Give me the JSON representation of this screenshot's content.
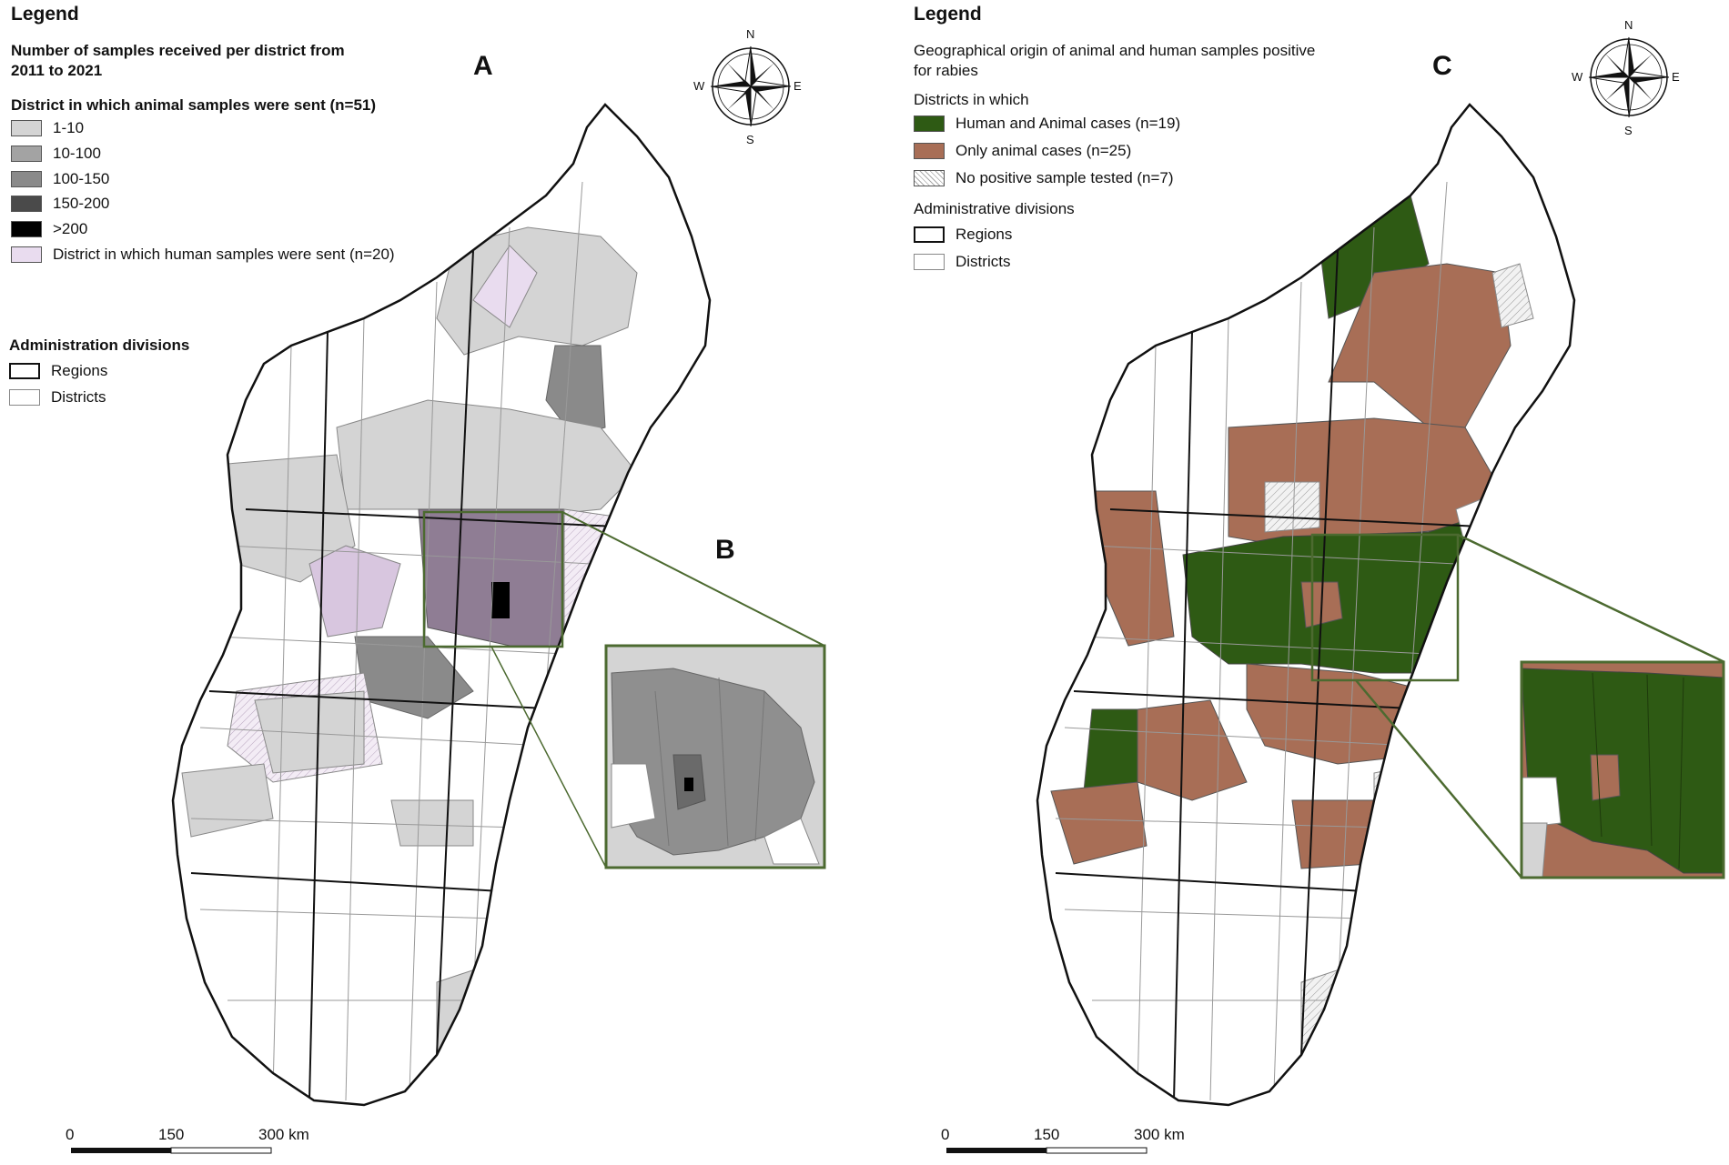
{
  "panelA": {
    "legend_title": "Legend",
    "subtitle_line1": "Number of samples received per district from",
    "subtitle_line2": "2011 to 2021",
    "animal_heading": "District in which animal samples were sent (n=51)",
    "classes": [
      {
        "label": "1-10",
        "color": "#d4d4d4"
      },
      {
        "label": "10-100",
        "color": "#a3a3a3"
      },
      {
        "label": "100-150",
        "color": "#8a8a8a"
      },
      {
        "label": "150-200",
        "color": "#4a4a4a"
      },
      {
        "label": ">200",
        "color": "#000000"
      }
    ],
    "human_label": "District in which human samples were sent (n=20)",
    "human_color": "#e9dcef",
    "admin_heading": "Administration divisions",
    "regions_label": "Regions",
    "districts_label": "Districts",
    "letter_main": "A",
    "letter_inset": "B",
    "scale": {
      "zero": "0",
      "mid": "150",
      "end": "300 km"
    },
    "compass": {
      "n": "N",
      "s": "S",
      "e": "E",
      "w": "W"
    }
  },
  "panelC": {
    "legend_title": "Legend",
    "subtitle_line1": "Geographical origin of animal and human samples positive",
    "subtitle_line2": "for rabies",
    "districts_heading": "Districts in which",
    "classes": [
      {
        "label": "Human and Animal cases (n=19)",
        "color": "#2e5a14"
      },
      {
        "label": "Only animal cases (n=25)",
        "color": "#a86e56"
      },
      {
        "label": "No positive sample tested (n=7)",
        "color": "hatch"
      }
    ],
    "admin_heading": "Administrative divisions",
    "regions_label": "Regions",
    "districts_label": "Districts",
    "letter_main": "C",
    "scale": {
      "zero": "0",
      "mid": "150",
      "end": "300 km"
    },
    "compass": {
      "n": "N",
      "s": "S",
      "e": "E",
      "w": "W"
    }
  },
  "colors": {
    "inset_frame": "#4c6a30",
    "island_outline": "#111111"
  }
}
